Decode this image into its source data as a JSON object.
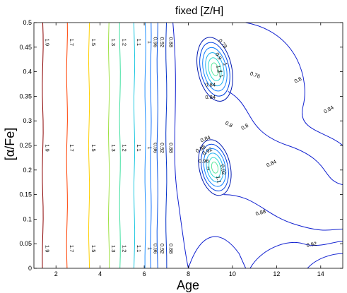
{
  "chart_data": {
    "type": "contour",
    "title": "fixed [Z/H]",
    "xlabel": "Age",
    "ylabel": "[α/Fe]",
    "xlim": [
      1,
      15
    ],
    "ylim": [
      0,
      0.5
    ],
    "xticks": [
      "2",
      "4",
      "6",
      "8",
      "10",
      "12",
      "14"
    ],
    "yticks": [
      "0",
      "0.05",
      "0.1",
      "0.15",
      "0.2",
      "0.25",
      "0.3",
      "0.35",
      "0.4",
      "0.45",
      "0.5"
    ],
    "grid": false,
    "contour_levels": [
      {
        "label": "1.9",
        "x": 1.4,
        "color": "#8b0000"
      },
      {
        "label": "1.7",
        "x": 2.5,
        "color": "#ff4000"
      },
      {
        "label": "1.5",
        "x": 3.5,
        "color": "#ffd000"
      },
      {
        "label": "1.3",
        "x": 4.4,
        "color": "#9fe040"
      },
      {
        "label": "1.2",
        "x": 4.9,
        "color": "#40e0a0"
      },
      {
        "label": "1.1",
        "x": 5.55,
        "color": "#20c8e0"
      },
      {
        "label": "1",
        "x": 6.05,
        "color": "#2090ff"
      },
      {
        "label": "0.96",
        "x": 6.3,
        "color": "#1070ff"
      },
      {
        "label": "0.92",
        "x": 6.6,
        "color": "#0050e8"
      },
      {
        "label": "0.88",
        "x": 7.0,
        "color": "#0030c8"
      }
    ],
    "upper_blob_labels": [
      "0.78",
      "0.84",
      "0.9",
      "1",
      "1.1",
      "1.2",
      "0.84",
      "0.8"
    ],
    "lower_blob_labels": [
      "0.84",
      "0.88",
      "0.92",
      "0.96",
      "1",
      "1.1",
      "0.92"
    ],
    "right_labels": [
      "0.76",
      "0.8",
      "0.84",
      "0.8",
      "0.84",
      "0.88",
      "0.92"
    ]
  }
}
